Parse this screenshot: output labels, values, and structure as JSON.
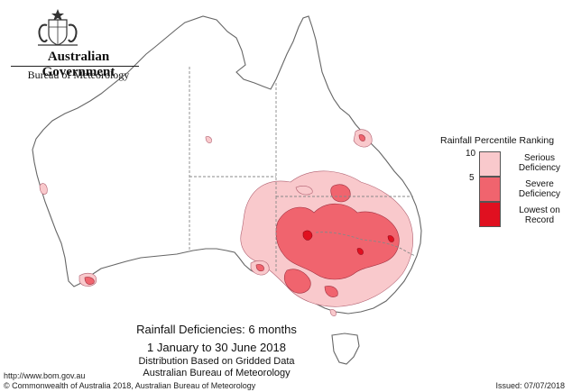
{
  "header": {
    "government": "Australian Government",
    "bureau": "Bureau of Meteorology"
  },
  "legend": {
    "title": "Rainfall Percentile Ranking",
    "ticks": [
      "10",
      "5"
    ],
    "classes": [
      {
        "label": "Serious Deficiency",
        "color": "#f9c9cc"
      },
      {
        "label": "Severe Deficiency",
        "color": "#f0646e"
      },
      {
        "label": "Lowest on Record",
        "color": "#e01020"
      }
    ]
  },
  "caption": {
    "title": "Rainfall Deficiencies: 6 months",
    "dates": "1 January to 30 June 2018",
    "line1": "Distribution Based on Gridded Data",
    "line2": "Australian Bureau of Meteorology"
  },
  "footer": {
    "url": "http://www.bom.gov.au",
    "copyright": "© Commonwealth of Australia 2018, Australian Bureau of Meteorology",
    "issued": "Issued: 07/07/2018"
  },
  "map": {
    "colors": {
      "outline": "#666666",
      "border": "#888888",
      "serious": "#f9c9cc",
      "severe": "#f0646e",
      "lowest": "#e01020"
    }
  }
}
